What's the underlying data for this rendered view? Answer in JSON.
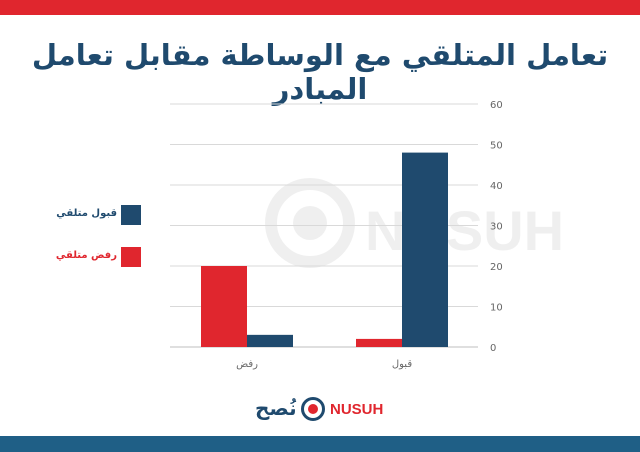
{
  "colors": {
    "navy": "#1f4a6e",
    "red": "#e0262e",
    "top_bar": "#e0262e",
    "bottom_bar": "#1f5f86",
    "grid": "#d9d9d9",
    "tick": "#666666",
    "title": "#1f4a6e"
  },
  "title": "تعامل المتلقي مع الوساطة مقابل تعامل المبادر",
  "legend": [
    {
      "label": "قبول متلقي",
      "color": "#1f4a6e"
    },
    {
      "label": "رفض متلقي",
      "color": "#e0262e"
    }
  ],
  "chart_data": {
    "type": "bar",
    "title": "تعامل المتلقي مع الوساطة مقابل تعامل المبادر",
    "categories": [
      "رفض",
      "قبول"
    ],
    "series": [
      {
        "name": "رفض متلقي",
        "color": "#e0262e",
        "values": [
          20,
          2
        ]
      },
      {
        "name": "قبول متلقي",
        "color": "#1f4a6e",
        "values": [
          3,
          48
        ]
      }
    ],
    "ylim": [
      0,
      60
    ],
    "yticks": [
      0,
      10,
      20,
      30,
      40,
      50,
      60
    ],
    "y_axis_side": "right",
    "grid": true,
    "legend_position": "left",
    "xlabel": "",
    "ylabel": ""
  },
  "brand": {
    "arabic": "نُصح",
    "english": "NUSUH",
    "icon": "nusuh-logo-icon"
  },
  "watermark": {
    "text": "NUSUH"
  }
}
